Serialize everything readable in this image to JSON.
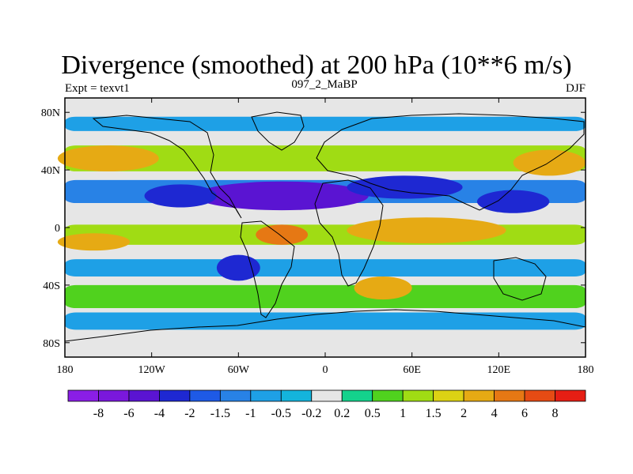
{
  "title": "Divergence (smoothed) at 200 hPa (10**6 m/s)",
  "left_label": "Expt = texvt1",
  "center_label": "097_2_MaBP",
  "right_label": "DJF",
  "lat_ticks": [
    {
      "value": 80,
      "label": "80N"
    },
    {
      "value": 40,
      "label": "40N"
    },
    {
      "value": 0,
      "label": "0"
    },
    {
      "value": -40,
      "label": "40S"
    },
    {
      "value": -80,
      "label": "80S"
    }
  ],
  "lon_ticks": [
    {
      "value": -180,
      "label": "180"
    },
    {
      "value": -120,
      "label": "120W"
    },
    {
      "value": -60,
      "label": "60W"
    },
    {
      "value": 0,
      "label": "0"
    },
    {
      "value": 60,
      "label": "60E"
    },
    {
      "value": 120,
      "label": "120E"
    },
    {
      "value": 180,
      "label": "180"
    }
  ],
  "colorbar": {
    "colors": [
      "#8a1ee6",
      "#7a18dc",
      "#5a14d2",
      "#1e28d2",
      "#1e5ae6",
      "#2882e6",
      "#1ea0e6",
      "#14b4dc",
      "#e6e6e6",
      "#14d28c",
      "#50d21e",
      "#a0dc14",
      "#dcd214",
      "#e6aa14",
      "#e67814",
      "#e64b14",
      "#e61e14"
    ],
    "labels": [
      "-8",
      "-6",
      "-4",
      "-2",
      "-1.5",
      "-1",
      "-0.5",
      "-0.2",
      "0.2",
      "0.5",
      "1",
      "1.5",
      "2",
      "4",
      "6",
      "8"
    ]
  },
  "chart_data": {
    "type": "filled-contour-map",
    "title": "Divergence (smoothed) at 200 hPa (10**6 m/s)",
    "experiment": "texvt1",
    "case": "097_2_MaBP",
    "season": "DJF",
    "xlim": [
      -180,
      180
    ],
    "ylim": [
      -90,
      90
    ],
    "levels": [
      -8,
      -6,
      -4,
      -2,
      -1.5,
      -1,
      -0.5,
      -0.2,
      0.2,
      0.5,
      1,
      1.5,
      2,
      4,
      6,
      8
    ],
    "features": [
      {
        "name": "nh-subtropical-convergence",
        "type": "band",
        "lon": [
          -180,
          180
        ],
        "lat": 25,
        "half_width": 8,
        "value": -1.2
      },
      {
        "name": "central-convergence-core",
        "type": "blob",
        "lon": -30,
        "lat": 22,
        "rx": 60,
        "ry": 10,
        "value": -4.5
      },
      {
        "name": "east-convergence-core",
        "type": "blob",
        "lon": 55,
        "lat": 28,
        "rx": 40,
        "ry": 8,
        "value": -3.5
      },
      {
        "name": "west-convergence-core",
        "type": "blob",
        "lon": -100,
        "lat": 22,
        "rx": 25,
        "ry": 8,
        "value": -2.5
      },
      {
        "name": "pacific-convergence-core",
        "type": "blob",
        "lon": 130,
        "lat": 18,
        "rx": 25,
        "ry": 8,
        "value": -2.5
      },
      {
        "name": "nh-midlatitude-divergence",
        "type": "band",
        "lon": [
          -180,
          180
        ],
        "lat": 48,
        "half_width": 9,
        "value": 1.2
      },
      {
        "name": "west-midlat-divergence-core",
        "type": "blob",
        "lon": -150,
        "lat": 48,
        "rx": 35,
        "ry": 9,
        "value": 2.8
      },
      {
        "name": "east-midlat-divergence-core",
        "type": "blob",
        "lon": 155,
        "lat": 45,
        "rx": 25,
        "ry": 9,
        "value": 2.5
      },
      {
        "name": "arctic-weak-convergence",
        "type": "band",
        "lon": [
          -180,
          180
        ],
        "lat": 72,
        "half_width": 5,
        "value": -0.7
      },
      {
        "name": "equatorial-divergence",
        "type": "band",
        "lon": [
          -180,
          180
        ],
        "lat": -5,
        "half_width": 7,
        "value": 1.3
      },
      {
        "name": "atlantic-divergence-core",
        "type": "blob",
        "lon": -30,
        "lat": -5,
        "rx": 18,
        "ry": 7,
        "value": 4.5
      },
      {
        "name": "indian-divergence-core",
        "type": "blob",
        "lon": 70,
        "lat": -2,
        "rx": 55,
        "ry": 9,
        "value": 3.0
      },
      {
        "name": "eastern-pacific-divergence",
        "type": "blob",
        "lon": -160,
        "lat": -10,
        "rx": 25,
        "ry": 6,
        "value": 2.8
      },
      {
        "name": "sh-subtropical-convergence",
        "type": "band",
        "lon": [
          -180,
          180
        ],
        "lat": -28,
        "half_width": 6,
        "value": -1.0
      },
      {
        "name": "south-american-convergence",
        "type": "blob",
        "lon": -60,
        "lat": -28,
        "rx": 15,
        "ry": 9,
        "value": -3.5
      },
      {
        "name": "sh-midlatitude-divergence",
        "type": "band",
        "lon": [
          -180,
          180
        ],
        "lat": -48,
        "half_width": 8,
        "value": 0.9
      },
      {
        "name": "south-atlantic-divergence",
        "type": "blob",
        "lon": 40,
        "lat": -42,
        "rx": 20,
        "ry": 8,
        "value": 2.2
      },
      {
        "name": "southern-ocean-weak-convergence",
        "type": "band",
        "lon": [
          -180,
          180
        ],
        "lat": -65,
        "half_width": 6,
        "value": -0.6
      }
    ]
  }
}
